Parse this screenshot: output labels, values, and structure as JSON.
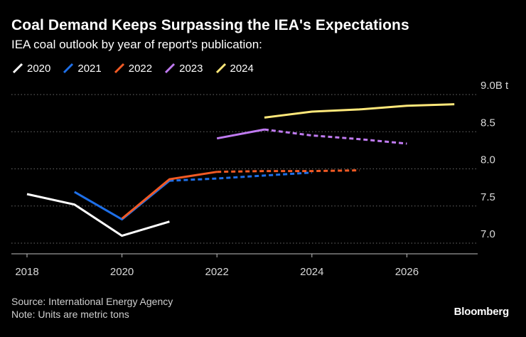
{
  "title": "Coal Demand Keeps Surpassing the IEA's Expectations",
  "subtitle": "IEA coal outlook by year of report's publication:",
  "source": "Source: International Energy Agency",
  "note": "Note: Units are metric tons",
  "brand": "Bloomberg",
  "chart_data": {
    "type": "line",
    "title": "Coal Demand Keeps Surpassing the IEA's Expectations",
    "subtitle": "IEA coal outlook by year of report's publication:",
    "xlabel": "",
    "ylabel": "",
    "xlim": [
      2018,
      2027.5
    ],
    "ylim": [
      7.0,
      9.0
    ],
    "x_ticks": [
      "2018",
      "2020",
      "2022",
      "2024",
      "2026"
    ],
    "x_tick_values": [
      2018,
      2020,
      2022,
      2024,
      2026
    ],
    "y_ticks": [
      "9.0B t",
      "8.5",
      "8.0",
      "7.5",
      "7.0"
    ],
    "y_tick_values": [
      9.0,
      8.5,
      8.0,
      7.5,
      7.0
    ],
    "grid": "horizontal dotted",
    "y_axis_side": "right",
    "legend_position": "top-left",
    "series": [
      {
        "name": "2020",
        "color": "#ffffff",
        "actual": [
          [
            2018,
            7.66
          ],
          [
            2019,
            7.52
          ],
          [
            2020,
            7.1
          ],
          [
            2021,
            7.29
          ]
        ],
        "forecast": []
      },
      {
        "name": "2021",
        "color": "#1e6fe8",
        "actual": [
          [
            2019,
            7.69
          ],
          [
            2020,
            7.32
          ],
          [
            2021,
            7.84
          ]
        ],
        "forecast": [
          [
            2021,
            7.84
          ],
          [
            2022,
            7.87
          ],
          [
            2023,
            7.91
          ],
          [
            2024,
            7.95
          ]
        ]
      },
      {
        "name": "2022",
        "color": "#f25a24",
        "actual": [
          [
            2020,
            7.33
          ],
          [
            2021,
            7.86
          ],
          [
            2022,
            7.96
          ]
        ],
        "forecast": [
          [
            2022,
            7.96
          ],
          [
            2023,
            7.97
          ],
          [
            2024,
            7.97
          ],
          [
            2025,
            7.98
          ]
        ]
      },
      {
        "name": "2023",
        "color": "#bf7af0",
        "actual": [
          [
            2022,
            8.41
          ],
          [
            2023,
            8.53
          ]
        ],
        "forecast": [
          [
            2023,
            8.53
          ],
          [
            2024,
            8.45
          ],
          [
            2025,
            8.4
          ],
          [
            2026,
            8.34
          ]
        ]
      },
      {
        "name": "2024",
        "color": "#ffe87a",
        "actual": [
          [
            2023,
            8.69
          ],
          [
            2024,
            8.77
          ],
          [
            2025,
            8.8
          ],
          [
            2026,
            8.85
          ],
          [
            2027,
            8.87
          ]
        ],
        "forecast": []
      }
    ]
  },
  "colors": {
    "background": "#000000",
    "grid": "#6b6b6b",
    "axis": "#bfbfbf",
    "text": "#ffffff",
    "muted_text": "#d9d9d9"
  }
}
